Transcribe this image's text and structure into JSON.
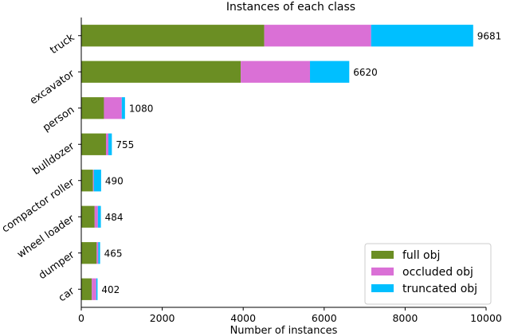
{
  "chart_data": {
    "type": "bar",
    "orientation": "horizontal",
    "stacked": true,
    "title": "Instances of each class",
    "xlabel": "Number of instances",
    "ylabel": "",
    "xlim": [
      0,
      10000
    ],
    "xticks": [
      "0",
      "2000",
      "4000",
      "6000",
      "8000",
      "10000"
    ],
    "grid": false,
    "legend_position": "bottom-right",
    "categories": [
      "truck",
      "excavator",
      "person",
      "bulldozer",
      "compactor roller",
      "wheel loader",
      "dumper",
      "car"
    ],
    "series": [
      {
        "name": "full obj",
        "color": "#6b8e23",
        "values": [
          4520,
          3940,
          560,
          610,
          290,
          330,
          380,
          260
        ]
      },
      {
        "name": "occluded obj",
        "color": "#da70d6",
        "values": [
          2640,
          1710,
          440,
          60,
          20,
          80,
          40,
          110
        ]
      },
      {
        "name": "truncated obj",
        "color": "#00bfff",
        "values": [
          2521,
          970,
          80,
          85,
          180,
          74,
          45,
          32
        ]
      }
    ],
    "totals": [
      "9681",
      "6620",
      "1080",
      "755",
      "490",
      "484",
      "465",
      "402"
    ]
  }
}
